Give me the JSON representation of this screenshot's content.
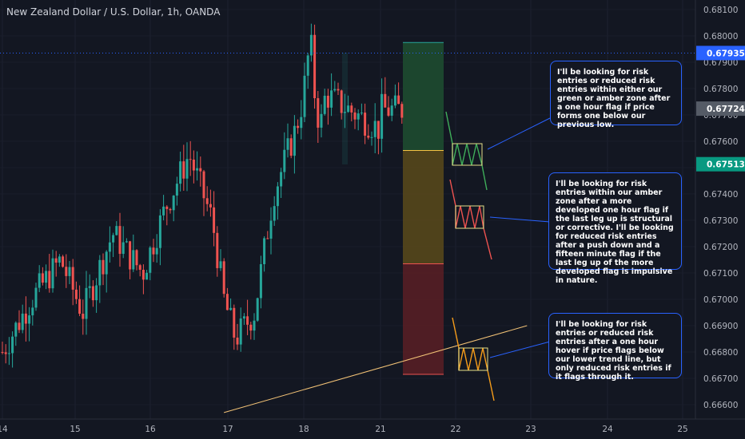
{
  "chart_title": "New Zealand Dollar / U.S. Dollar, 1h, OANDA",
  "colors": {
    "background": "#131722",
    "up_candle": "#26a69a",
    "down_candle": "#ef5350",
    "axis_text": "#b2b5be",
    "callout_border": "#2962ff",
    "trend_line": "#f2c276"
  },
  "chart_data": {
    "type": "candlestick",
    "title": "New Zealand Dollar / U.S. Dollar, 1h, OANDA",
    "x_ticks": [
      "14",
      "15",
      "16",
      "17",
      "18",
      "21",
      "22",
      "23",
      "24",
      "25"
    ],
    "y_ticks": [
      "0.68100",
      "0.68000",
      "0.67900",
      "0.67800",
      "0.67700",
      "0.67600",
      "0.67500",
      "0.67400",
      "0.67300",
      "0.67200",
      "0.67100",
      "0.67000",
      "0.66900",
      "0.66800",
      "0.66700",
      "0.66600"
    ],
    "ylim": [
      0.6657,
      0.6815
    ],
    "price_labels": [
      {
        "value": "0.67935",
        "price": 0.67935,
        "color": "#2962ff"
      },
      {
        "value": "0.67724",
        "price": 0.67724,
        "color": "#555b66"
      },
      {
        "value": "0.67513",
        "price": 0.67513,
        "color": "#089981"
      }
    ],
    "zones": [
      {
        "name": "green zone",
        "top": 0.67975,
        "bottom": 0.67565,
        "fill": "#1f4f30",
        "line": "#26a69a"
      },
      {
        "name": "amber zone",
        "top": 0.67565,
        "bottom": 0.67135,
        "fill": "#5a4a1a",
        "line": "#f5c342"
      },
      {
        "name": "red zone",
        "top": 0.67135,
        "bottom": 0.66715,
        "fill": "#5a1f24",
        "line": "#ef5350"
      }
    ],
    "trend_line": {
      "start": {
        "day": 16.95,
        "price": 0.6657
      },
      "end": {
        "day": 22.95,
        "price": 0.669
      }
    }
  },
  "callouts": [
    {
      "text": "I'll be looking for risk entries or reduced risk entries within either our green or amber zone after a one hour flag if price forms one below our previous low."
    },
    {
      "text": "I'll be looking for risk entries within our amber zone after a more developed one hour flag if the last leg up is structural or corrective. I'll be looking for reduced risk entries after a push down and a fifteen minute flag if the last leg up of the more developed flag is impulsive in nature."
    },
    {
      "text": "I'll be looking for risk entries or reduced risk entries after a one hour hover if price flags below our lower trend line, but only reduced risk entries if it flags through it."
    }
  ]
}
